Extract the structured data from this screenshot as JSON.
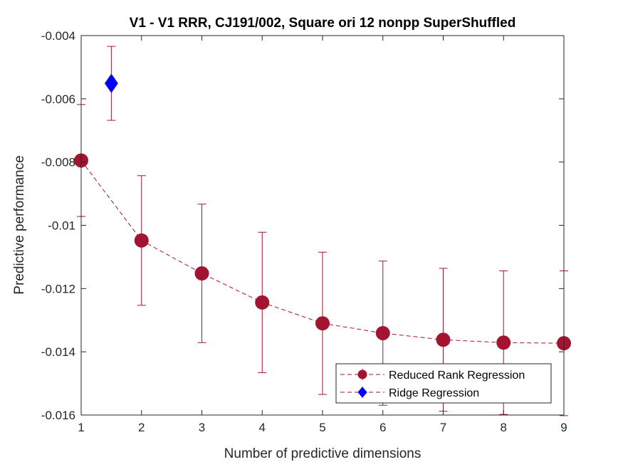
{
  "chart_data": {
    "type": "scatter",
    "title": "V1 - V1 RRR, CJ191/002, Square ori 12 nonpp SuperShuffled",
    "xlabel": "Number of predictive dimensions",
    "ylabel": "Predictive performance",
    "xlim": [
      1,
      9
    ],
    "ylim": [
      -0.016,
      -0.004
    ],
    "xticks": [
      1,
      2,
      3,
      4,
      5,
      6,
      7,
      8,
      9
    ],
    "xtick_labels": [
      "1",
      "2",
      "3",
      "4",
      "5",
      "6",
      "7",
      "8",
      "9"
    ],
    "yticks": [
      -0.016,
      -0.014,
      -0.012,
      -0.01,
      -0.008,
      -0.006,
      -0.004
    ],
    "ytick_labels": [
      "-0.016",
      "-0.014",
      "-0.012",
      "-0.01",
      "-0.008",
      "-0.006",
      "-0.004"
    ],
    "grid": false,
    "legend_position": "bottom-right",
    "series": [
      {
        "name": "Reduced Rank Regression",
        "marker": "circle",
        "line": "dashed",
        "color": "#A2142F",
        "x": [
          1,
          2,
          3,
          4,
          5,
          6,
          7,
          8,
          9
        ],
        "y": [
          -0.00795,
          -0.01048,
          -0.01152,
          -0.01244,
          -0.0131,
          -0.01341,
          -0.01362,
          -0.01371,
          -0.01373
        ],
        "err": [
          0.00177,
          0.00205,
          0.00219,
          0.00222,
          0.00225,
          0.00228,
          0.00226,
          0.00227,
          0.00229
        ]
      },
      {
        "name": "Ridge Regression",
        "marker": "diamond",
        "line": "none",
        "color": "#0000FF",
        "x": [
          1.5
        ],
        "y": [
          -0.00551
        ],
        "err": [
          0.00117
        ]
      }
    ]
  }
}
